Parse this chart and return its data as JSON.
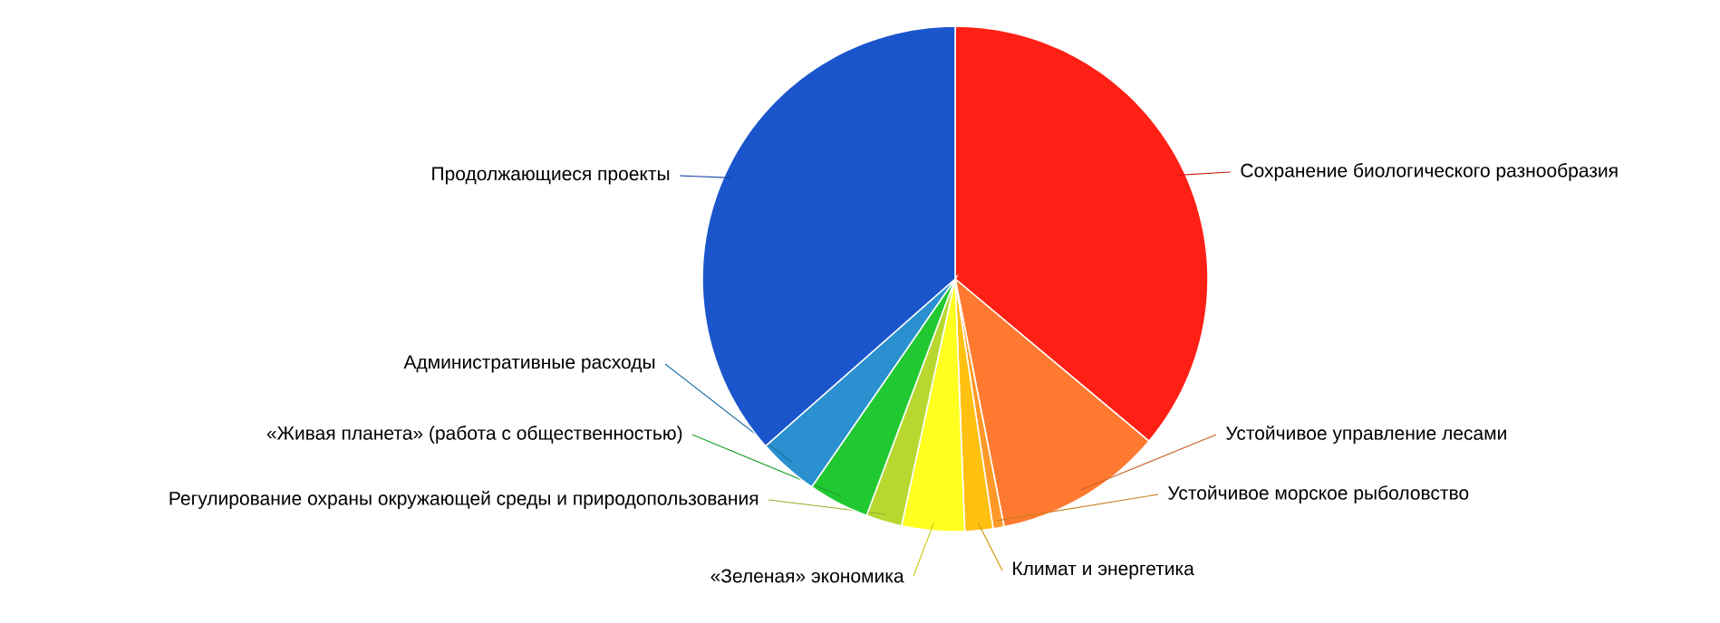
{
  "chart_data": {
    "type": "pie",
    "categories": [
      "Сохранение биологического разнообразия",
      "Устойчивое управление лесами",
      "Устойчивое морское рыболовство",
      "Климат и энергетика",
      "«Зеленая» экономика",
      "Регулирование охраны окружающей среды и природопользования",
      "«Живая планета» (работа с общественностью)",
      "Административные расходы",
      "Продолжающиеся проекты"
    ],
    "values": [
      36.1,
      10.8,
      0.7,
      1.8,
      4.0,
      2.3,
      3.9,
      3.9,
      36.5
    ],
    "colors": [
      "#ff2015",
      "#ff7a30",
      "#ff9a28",
      "#ffc010",
      "#ffff20",
      "#b8d830",
      "#22c832",
      "#2a90d0",
      "#1a55cc"
    ]
  }
}
